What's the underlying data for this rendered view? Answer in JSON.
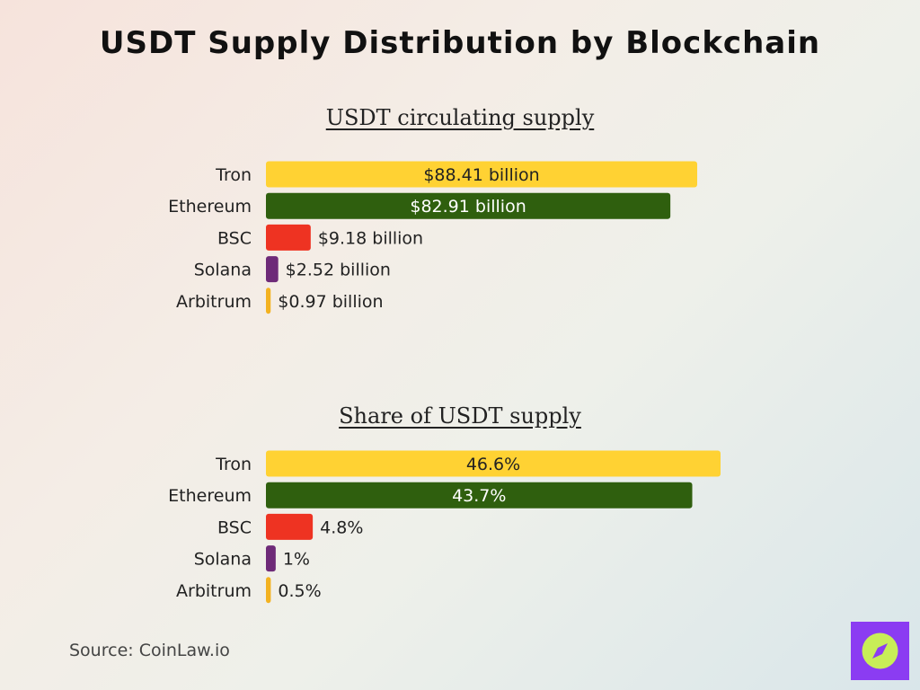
{
  "title": "USDT Supply Distribution by Blockchain",
  "source": "Source: CoinLaw.io",
  "colors": {
    "tron": "#ffd233",
    "ethereum": "#2f5f0e",
    "bsc": "#ee3322",
    "solana": "#6e2a78",
    "arbitrum": "#f3b221",
    "badge": "#8b3cf2",
    "badge_icon": "#c8ee57"
  },
  "logo": {
    "icon": "compass-icon"
  },
  "chart_data": [
    {
      "type": "bar",
      "orientation": "horizontal",
      "title": "USDT circulating supply",
      "categories": [
        "Tron",
        "Ethereum",
        "BSC",
        "Solana",
        "Arbitrum"
      ],
      "values": [
        88.41,
        82.91,
        9.18,
        2.52,
        0.97
      ],
      "labels": [
        "$88.41 billion",
        "$82.91 billion",
        "$9.18 billion",
        "$2.52 billion",
        "$0.97 billion"
      ],
      "unit": "billion USD",
      "xlim": [
        0,
        88.41
      ],
      "grid": false,
      "legend": "none"
    },
    {
      "type": "bar",
      "orientation": "horizontal",
      "title": "Share of USDT supply",
      "categories": [
        "Tron",
        "Ethereum",
        "BSC",
        "Solana",
        "Arbitrum"
      ],
      "values": [
        46.6,
        43.7,
        4.8,
        1,
        0.5
      ],
      "labels": [
        "46.6%",
        "43.7%",
        "4.8%",
        "1%",
        "0.5%"
      ],
      "unit": "percent",
      "xlim": [
        0,
        46.6
      ],
      "grid": false,
      "legend": "none"
    }
  ]
}
